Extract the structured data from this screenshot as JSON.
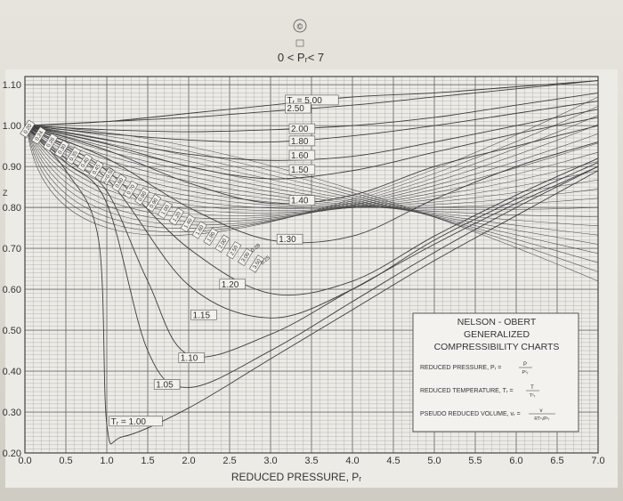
{
  "chart_data": {
    "type": "line",
    "title": "0 < Pᵣ< 7",
    "xlabel": "REDUCED PRESSURE, Pᵣ",
    "ylabel": "",
    "xlim": [
      0,
      7
    ],
    "ylim": [
      0.2,
      1.12
    ],
    "x_ticks": [
      "0.0",
      "0.5",
      "1.0",
      "1.5",
      "2.0",
      "2.5",
      "3.0",
      "3.5",
      "4.0",
      "4.5",
      "5.0",
      "5.5",
      "6.0",
      "6.5",
      "7.0"
    ],
    "y_ticks": [
      "0.20",
      "0.30",
      "0.40",
      "0.50",
      "0.60",
      "0.70",
      "0.80",
      "0.90",
      "1.00",
      "1.10"
    ],
    "grid": true,
    "series": [
      {
        "name": "Tᵣ = 5.00",
        "x": [
          0,
          1,
          2,
          3,
          4,
          5,
          6,
          7
        ],
        "y": [
          1.0,
          1.01,
          1.03,
          1.05,
          1.07,
          1.08,
          1.095,
          1.11
        ]
      },
      {
        "name": "2.50",
        "x": [
          0,
          1,
          2,
          3,
          4,
          5,
          6,
          7
        ],
        "y": [
          1.0,
          1.01,
          1.02,
          1.035,
          1.05,
          1.07,
          1.09,
          1.11
        ]
      },
      {
        "name": "2.00",
        "x": [
          0,
          1,
          2,
          3,
          4,
          5,
          6,
          7
        ],
        "y": [
          1.0,
          0.99,
          0.985,
          0.99,
          1.0,
          1.02,
          1.05,
          1.08
        ]
      },
      {
        "name": "1.80",
        "x": [
          0,
          1,
          2,
          3,
          4,
          5,
          6,
          7
        ],
        "y": [
          1.0,
          0.98,
          0.965,
          0.96,
          0.975,
          1.0,
          1.03,
          1.06
        ]
      },
      {
        "name": "1.60",
        "x": [
          0,
          1,
          2,
          3,
          4,
          5,
          6,
          7
        ],
        "y": [
          1.0,
          0.965,
          0.93,
          0.915,
          0.925,
          0.96,
          1.0,
          1.04
        ]
      },
      {
        "name": "1.50",
        "x": [
          0,
          1,
          2,
          3,
          4,
          5,
          6,
          7
        ],
        "y": [
          1.0,
          0.955,
          0.9,
          0.87,
          0.89,
          0.935,
          0.98,
          1.02
        ]
      },
      {
        "name": "1.40",
        "x": [
          0,
          1,
          2,
          3,
          4,
          5,
          6,
          7
        ],
        "y": [
          1.0,
          0.94,
          0.86,
          0.81,
          0.83,
          0.9,
          0.95,
          1.0
        ]
      },
      {
        "name": "1.30",
        "x": [
          0,
          1,
          2,
          3,
          4,
          5,
          6,
          7
        ],
        "y": [
          1.0,
          0.92,
          0.8,
          0.72,
          0.73,
          0.82,
          0.9,
          0.96
        ]
      },
      {
        "name": "1.20",
        "x": [
          0,
          1,
          2,
          3,
          4,
          5,
          6,
          7
        ],
        "y": [
          1.0,
          0.89,
          0.7,
          0.59,
          0.62,
          0.73,
          0.83,
          0.92
        ]
      },
      {
        "name": "1.15",
        "x": [
          0,
          1,
          2,
          3,
          4,
          5,
          6,
          7
        ],
        "y": [
          1.0,
          0.87,
          0.61,
          0.53,
          0.6,
          0.72,
          0.82,
          0.91
        ]
      },
      {
        "name": "1.10",
        "x": [
          0,
          0.5,
          1,
          1.5,
          2,
          3,
          4,
          5,
          6,
          7
        ],
        "y": [
          1.0,
          0.92,
          0.84,
          0.62,
          0.44,
          0.49,
          0.6,
          0.71,
          0.81,
          0.9
        ]
      },
      {
        "name": "1.05",
        "x": [
          0,
          0.5,
          1,
          1.5,
          2,
          3,
          4,
          5,
          6,
          7
        ],
        "y": [
          1.0,
          0.91,
          0.81,
          0.45,
          0.36,
          0.45,
          0.57,
          0.69,
          0.8,
          0.9
        ]
      },
      {
        "name": "Tᵣ = 1.00",
        "x": [
          0,
          0.5,
          0.9,
          1.0,
          1.2,
          2,
          3,
          4,
          5,
          6,
          7
        ],
        "y": [
          1.0,
          0.89,
          0.72,
          0.27,
          0.24,
          0.31,
          0.43,
          0.55,
          0.67,
          0.78,
          0.89
        ]
      }
    ],
    "isometric_labels": [
      "0.20",
      "0.24",
      "0.26",
      "0.30",
      "0.35",
      "0.40",
      "0.45",
      "0.50",
      "0.60",
      "0.70",
      "0.80",
      "0.90",
      "1.00",
      "1.20",
      "1.40",
      "1.60",
      "1.80",
      "2.00",
      "2.50",
      "3.00",
      "3.50"
    ],
    "isometric_prefix": "vᵣ=",
    "annotations": [
      "0.28",
      "0.25"
    ]
  },
  "legend_box": {
    "title_lines": [
      "NELSON - OBERT",
      "GENERALIZED",
      "COMPRESSIBILITY CHARTS"
    ],
    "rows": [
      {
        "label": "REDUCED PRESSURE, Pᵣ =",
        "formula_num": "P",
        "formula_den": "Pᶜᵣ"
      },
      {
        "label": "REDUCED TEMPERATURE, Tᵣ =",
        "formula_num": "T",
        "formula_den": "Tᶜᵣ"
      },
      {
        "label": "PSEUDO REDUCED VOLUME, vᵣ =",
        "formula_num": "v",
        "formula_den": "RTᶜᵣ/Pᶜᵣ"
      }
    ]
  },
  "watermark_glyph": "©",
  "side_mark": "Z"
}
